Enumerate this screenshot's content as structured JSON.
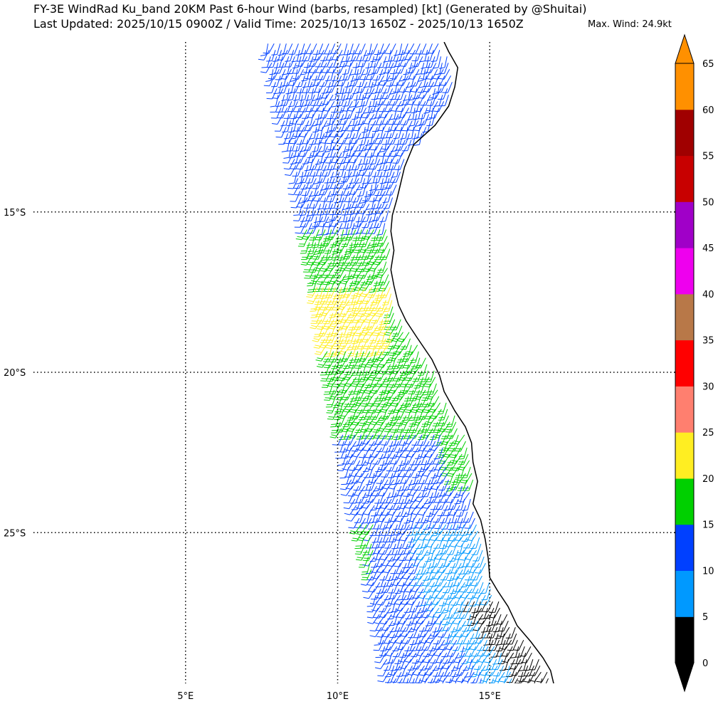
{
  "title": {
    "line1": "FY-3E WindRad Ku_band 20KM Past 6-hour Wind (barbs, resampled) [kt] (Generated by @Shuitai)",
    "line2": "Last Updated: 2025/10/15 0900Z / Valid Time: 2025/10/13 1650Z - 2025/10/13 1650Z",
    "max_wind": "Max. Wind: 24.9kt"
  },
  "map": {
    "lon_range": [
      0,
      21.1
    ],
    "lat_range": [
      -29.7,
      -9.7
    ],
    "gridlines": "dotted",
    "lon_labels": [
      {
        "value": 5,
        "label": "5°E"
      },
      {
        "value": 10,
        "label": "10°E"
      },
      {
        "value": 15,
        "label": "15°E"
      }
    ],
    "lat_labels": [
      {
        "value": -15,
        "label": "15°S"
      },
      {
        "value": -20,
        "label": "20°S"
      },
      {
        "value": -25,
        "label": "25°S"
      }
    ],
    "coastline": [
      [
        13.5,
        -9.7
      ],
      [
        13.65,
        -10.0
      ],
      [
        13.95,
        -10.5
      ],
      [
        13.85,
        -11.1
      ],
      [
        13.65,
        -11.7
      ],
      [
        13.2,
        -12.3
      ],
      [
        12.5,
        -12.9
      ],
      [
        12.2,
        -13.6
      ],
      [
        12.05,
        -14.2
      ],
      [
        11.95,
        -14.6
      ],
      [
        11.8,
        -15.1
      ],
      [
        11.75,
        -15.6
      ],
      [
        11.85,
        -16.2
      ],
      [
        11.75,
        -16.8
      ],
      [
        11.85,
        -17.3
      ],
      [
        12.0,
        -17.9
      ],
      [
        12.25,
        -18.4
      ],
      [
        12.6,
        -18.9
      ],
      [
        13.1,
        -19.6
      ],
      [
        13.35,
        -20.1
      ],
      [
        13.5,
        -20.6
      ],
      [
        13.85,
        -21.2
      ],
      [
        14.2,
        -21.7
      ],
      [
        14.4,
        -22.2
      ],
      [
        14.45,
        -22.8
      ],
      [
        14.6,
        -23.4
      ],
      [
        14.45,
        -24.1
      ],
      [
        14.7,
        -24.6
      ],
      [
        14.85,
        -25.2
      ],
      [
        14.95,
        -25.8
      ],
      [
        15.0,
        -26.4
      ],
      [
        15.25,
        -26.8
      ],
      [
        15.6,
        -27.3
      ],
      [
        15.9,
        -27.9
      ],
      [
        16.35,
        -28.4
      ],
      [
        16.75,
        -28.9
      ],
      [
        17.0,
        -29.3
      ],
      [
        17.1,
        -29.7
      ]
    ],
    "swath_west_edge": [
      [
        7.7,
        -9.7
      ],
      [
        8.1,
        -11.6
      ],
      [
        8.6,
        -13.4
      ],
      [
        8.9,
        -15.1
      ],
      [
        9.25,
        -16.8
      ],
      [
        9.45,
        -18.2
      ],
      [
        9.8,
        -20.1
      ],
      [
        10.2,
        -22.1
      ],
      [
        10.6,
        -24.1
      ],
      [
        11.1,
        -26.1
      ],
      [
        11.4,
        -27.7
      ],
      [
        11.75,
        -29.7
      ]
    ],
    "speed_zones": [
      {
        "band": "5-10",
        "lat_range": [
          -29.7,
          -24.6
        ],
        "color": "#0099ff"
      },
      {
        "band": "10-15",
        "lat_range": [
          -24.6,
          -21.8
        ],
        "color": "#0040ff"
      },
      {
        "band": "15-20",
        "lat_range": [
          -21.8,
          -15.5
        ],
        "color": "#00d000"
      },
      {
        "band": "20-25",
        "lat_range": [
          -19.2,
          -17.3
        ],
        "color": "#ffee22"
      },
      {
        "band": "10-15",
        "lat_range": [
          -15.5,
          -9.7
        ],
        "color": "#0040ff"
      },
      {
        "band": "0-5",
        "lat_range": [
          -29.7,
          -27.1
        ],
        "color": "#000000"
      }
    ]
  },
  "colorbar": {
    "levels": [
      "0",
      "5",
      "10",
      "15",
      "20",
      "25",
      "30",
      "35",
      "40",
      "45",
      "50",
      "55",
      "60",
      "65"
    ],
    "colors": [
      "#000000",
      "#0099ff",
      "#0040ff",
      "#00d000",
      "#ffee22",
      "#ff7f6f",
      "#ff0000",
      "#b87848",
      "#ee00ee",
      "#a000c8",
      "#c80000",
      "#a00000",
      "#ff9000"
    ],
    "extend": "both"
  }
}
